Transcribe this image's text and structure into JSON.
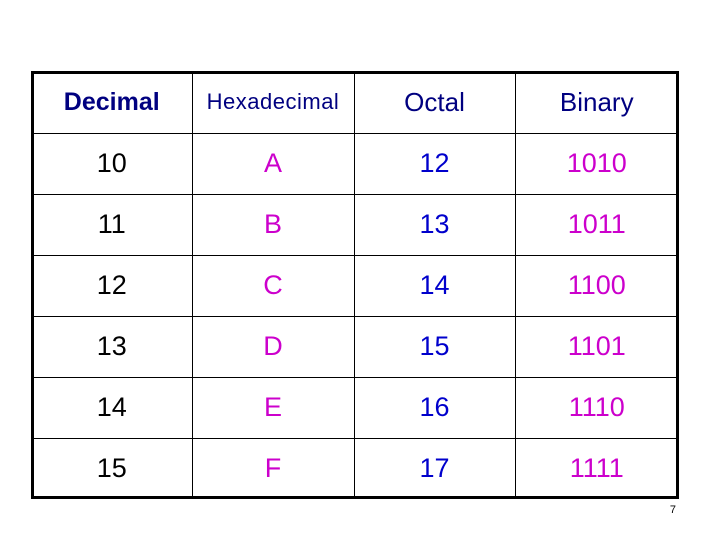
{
  "table": {
    "headers": {
      "decimal": "Decimal",
      "hexadecimal": "Hexadecimal",
      "octal": "Octal",
      "binary": "Binary"
    },
    "rows": [
      {
        "decimal": "10",
        "hexadecimal": "A",
        "octal": "12",
        "binary": "1010"
      },
      {
        "decimal": "11",
        "hexadecimal": "B",
        "octal": "13",
        "binary": "1011"
      },
      {
        "decimal": "12",
        "hexadecimal": "C",
        "octal": "14",
        "binary": "1100"
      },
      {
        "decimal": "13",
        "hexadecimal": "D",
        "octal": "15",
        "binary": "1101"
      },
      {
        "decimal": "14",
        "hexadecimal": "E",
        "octal": "16",
        "binary": "1110"
      },
      {
        "decimal": "15",
        "hexadecimal": "F",
        "octal": "17",
        "binary": "1111"
      }
    ]
  },
  "page_number": "7",
  "colors": {
    "header_text": "#000080",
    "decimal_text": "#000000",
    "hex_text": "#cc00cc",
    "octal_text": "#0000cc",
    "binary_text": "#cc00cc"
  }
}
